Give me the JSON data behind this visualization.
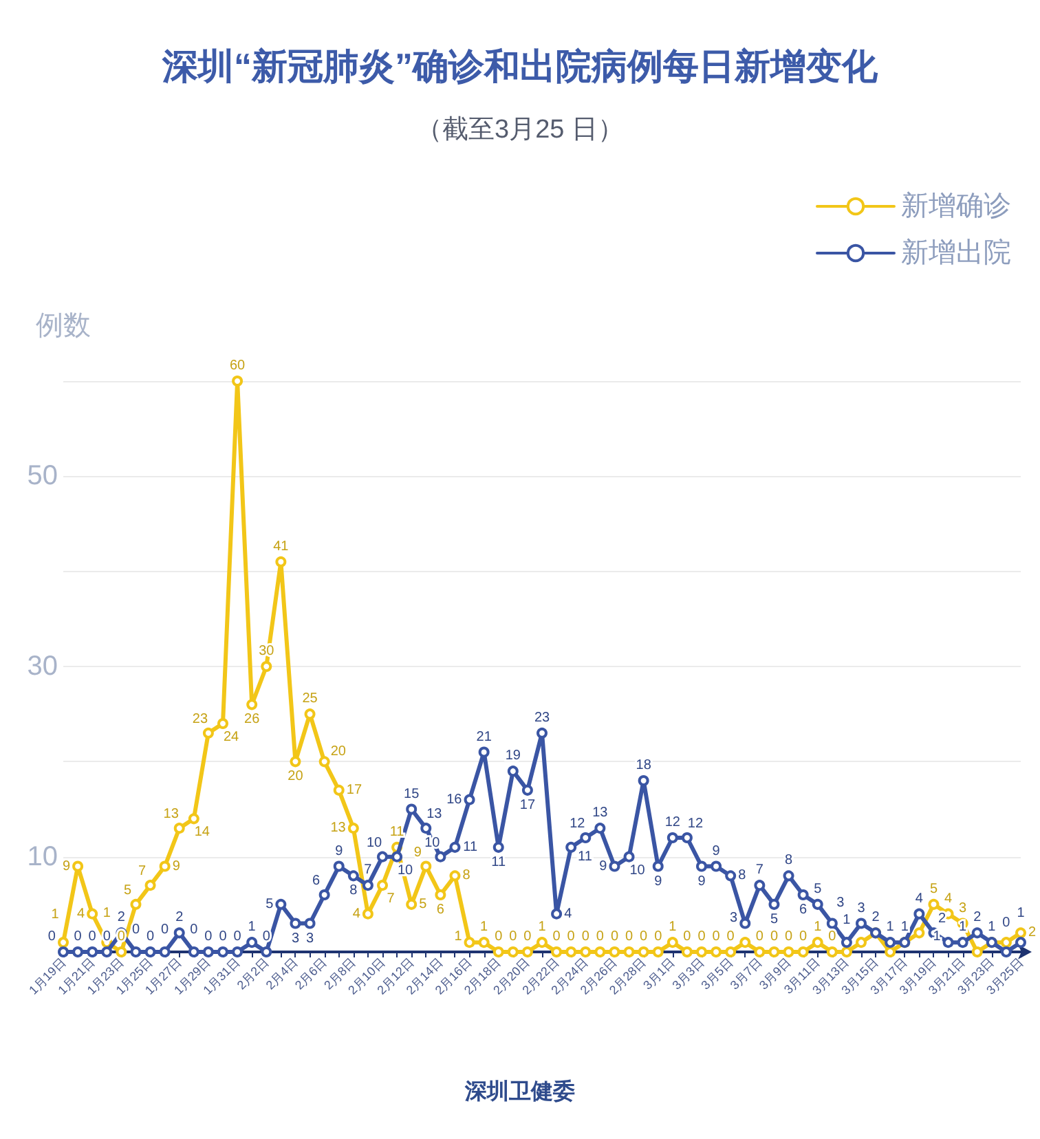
{
  "chart_data": {
    "type": "line",
    "title": "深圳“新冠肺炎”确诊和出院病例每日新增变化",
    "subtitle": "（截至3月25 日）",
    "ylabel": "例数",
    "categories": [
      "1月19日",
      null,
      "1月21日",
      null,
      "1月23日",
      null,
      "1月25日",
      null,
      "1月27日",
      null,
      "1月29日",
      null,
      "1月31日",
      null,
      "2月2日",
      null,
      "2月4日",
      null,
      "2月6日",
      null,
      "2月8日",
      null,
      "2月10日",
      null,
      "2月12日",
      null,
      "2月14日",
      null,
      "2月16日",
      null,
      "2月18日",
      null,
      "2月20日",
      null,
      "2月22日",
      null,
      "2月24日",
      null,
      "2月26日",
      null,
      "2月28日",
      null,
      "3月1日",
      null,
      "3月3日",
      null,
      "3月5日",
      null,
      "3月7日",
      null,
      "3月9日",
      null,
      "3月11日",
      null,
      "3月13日",
      null,
      "3月15日",
      null,
      "3月17日",
      null,
      "3月19日",
      null,
      "3月21日",
      null,
      "3月23日",
      null,
      "3月25日"
    ],
    "series": [
      {
        "name": "新增确诊",
        "color": "#f2c618",
        "values": [
          1,
          9,
          4,
          1,
          0,
          5,
          7,
          9,
          13,
          14,
          23,
          24,
          60,
          26,
          30,
          41,
          20,
          25,
          20,
          17,
          13,
          4,
          7,
          11,
          5,
          9,
          6,
          8,
          1,
          1,
          0,
          0,
          0,
          1,
          0,
          0,
          0,
          0,
          0,
          0,
          0,
          0,
          1,
          0,
          0,
          0,
          0,
          1,
          0,
          0,
          0,
          0,
          1,
          0,
          0,
          1,
          2,
          0,
          1,
          2,
          5,
          4,
          3,
          0,
          1,
          1,
          2
        ],
        "value_labels": [
          "1",
          "9",
          "4",
          "1",
          "0",
          "5",
          "7",
          "9",
          "13",
          "14",
          "23",
          "24",
          "60",
          "26",
          "30",
          "41",
          "20",
          "25",
          "20",
          "17",
          "13",
          "4",
          "7",
          "11",
          "5",
          "9",
          "6",
          "8",
          "1",
          "1",
          "0",
          "0",
          "0",
          "1",
          "0",
          "0",
          "0",
          "0",
          "0",
          "0",
          "0",
          "0",
          "1",
          "0",
          "0",
          "0",
          "0",
          null,
          "0",
          "0",
          "0",
          "0",
          "1",
          "0",
          null,
          null,
          null,
          null,
          null,
          null,
          "5",
          "4",
          "3",
          null,
          null,
          null,
          "2"
        ]
      },
      {
        "name": "新增出院",
        "color": "#3a55a4",
        "values": [
          0,
          0,
          0,
          0,
          2,
          0,
          0,
          0,
          2,
          0,
          0,
          0,
          0,
          1,
          0,
          5,
          3,
          3,
          6,
          9,
          8,
          7,
          10,
          10,
          15,
          13,
          10,
          11,
          16,
          21,
          11,
          19,
          17,
          23,
          4,
          11,
          12,
          13,
          9,
          10,
          18,
          9,
          12,
          12,
          9,
          9,
          8,
          3,
          7,
          5,
          8,
          6,
          5,
          3,
          1,
          3,
          2,
          1,
          1,
          4,
          2,
          1,
          1,
          2,
          1,
          0,
          1
        ],
        "value_labels": [
          "0",
          "0",
          "0",
          "0",
          "2",
          "0",
          "0",
          "0",
          "2",
          "0",
          "0",
          "0",
          "0",
          "1",
          "0",
          "5",
          "3",
          "3",
          "6",
          "9",
          "8",
          "7",
          "10",
          "10",
          "15",
          "13",
          "10",
          "11",
          "16",
          "21",
          "11",
          "19",
          "17",
          "23",
          "4",
          "11",
          "12",
          "13",
          "9",
          "10",
          "18",
          "9",
          "12",
          "12",
          "9",
          "9",
          "8",
          "3",
          "7",
          "5",
          "8",
          "6",
          "5",
          "3",
          "1",
          "3",
          "2",
          "1",
          "1",
          "4",
          "2",
          "1",
          "1",
          "2",
          "1",
          "0",
          "1"
        ]
      }
    ],
    "ylim": [
      0,
      60
    ],
    "yticks": [
      {
        "value": 0,
        "label": null
      },
      10,
      {
        "value": 20,
        "label": null
      },
      30,
      {
        "value": 40,
        "label": null
      },
      50,
      {
        "value": 60,
        "label": null
      }
    ],
    "grid": "y",
    "legend": "top right",
    "marker": "circle",
    "line_style": "solid",
    "annotations": [
      "深圳卫健委"
    ]
  }
}
